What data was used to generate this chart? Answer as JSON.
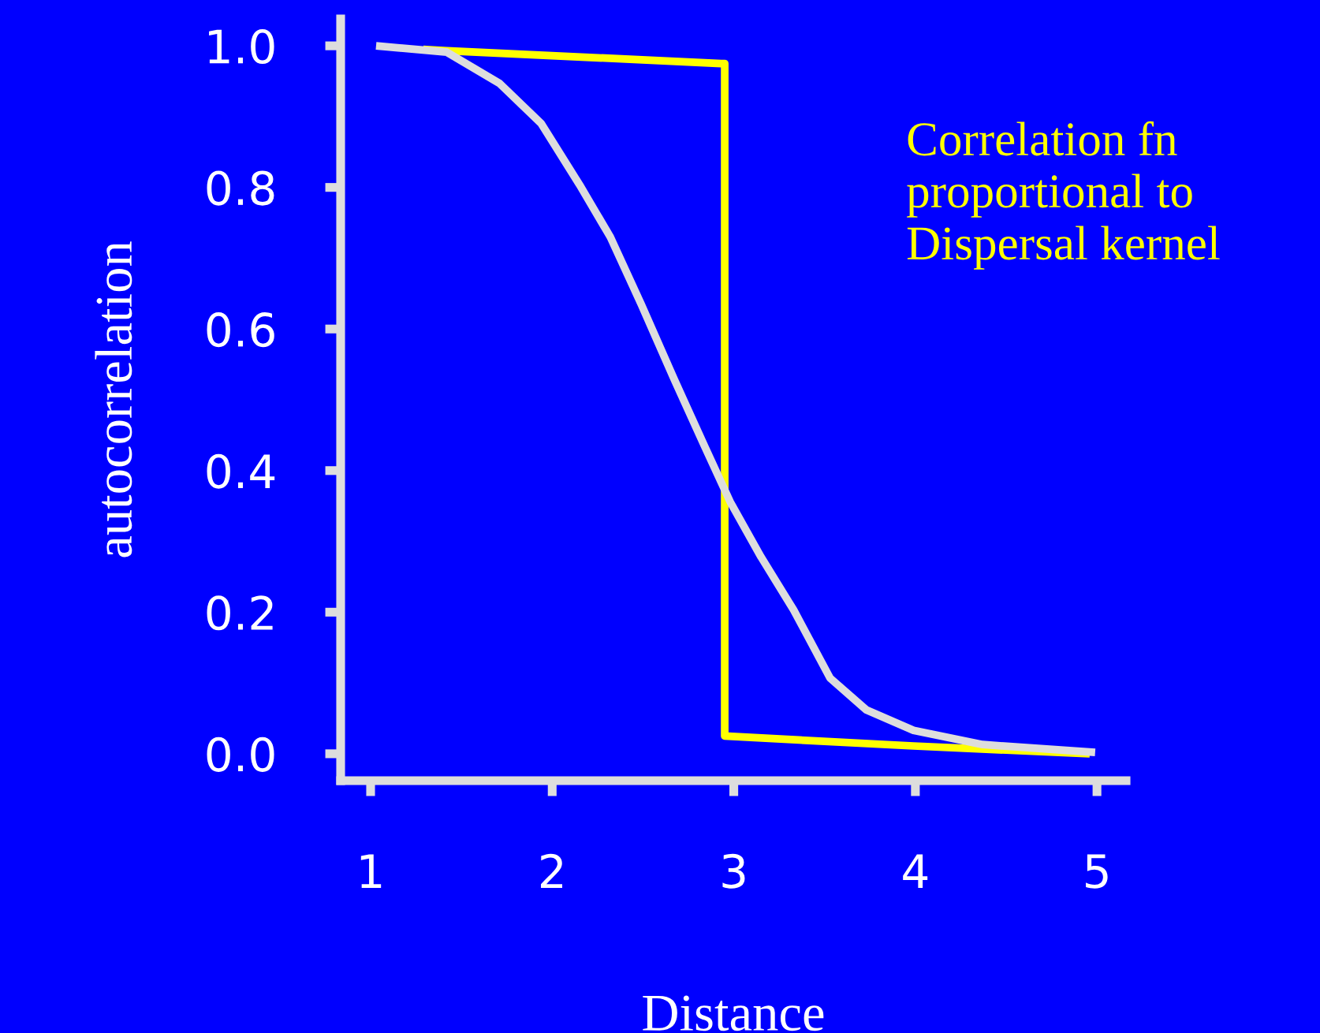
{
  "chart_data": {
    "type": "line",
    "xlabel": "Distance",
    "ylabel": "autocorrelation",
    "annotations": [
      "Correlation fn\nproportional to\nDispersal kernel"
    ],
    "xlim": [
      0.835,
      5.16
    ],
    "ylim": [
      -0.038,
      1.038
    ],
    "xticks": [
      1,
      2,
      3,
      4,
      5
    ],
    "yticks": [
      {
        "value": 0,
        "label": "0.0"
      },
      {
        "value": 0.2,
        "label": "0.2"
      },
      {
        "value": 0.4,
        "label": "0.4"
      },
      {
        "value": 0.6,
        "label": "0.6"
      },
      {
        "value": 0.8,
        "label": "0.8"
      },
      {
        "value": 1,
        "label": "1.0"
      }
    ],
    "grid": false,
    "legend": false,
    "marker": "none",
    "line_style": "solid",
    "series": [
      {
        "color": "#ffff00",
        "x": [
          1.29,
          1.42,
          2.93,
          2.95,
          2.95,
          3.99,
          4.96
        ],
        "values": [
          0.995,
          0.993,
          0.975,
          0.975,
          0.025,
          0.011,
          0.0
        ]
      },
      {
        "color": "#dddddd",
        "x": [
          1.03,
          1.42,
          1.71,
          1.94,
          2.15,
          2.32,
          2.49,
          2.67,
          2.84,
          2.98,
          3.15,
          3.33,
          3.53,
          3.73,
          3.99,
          4.37,
          4.99
        ],
        "values": [
          1.0,
          0.991,
          0.947,
          0.89,
          0.804,
          0.73,
          0.635,
          0.53,
          0.434,
          0.356,
          0.278,
          0.203,
          0.107,
          0.062,
          0.033,
          0.013,
          0.002
        ]
      }
    ]
  }
}
